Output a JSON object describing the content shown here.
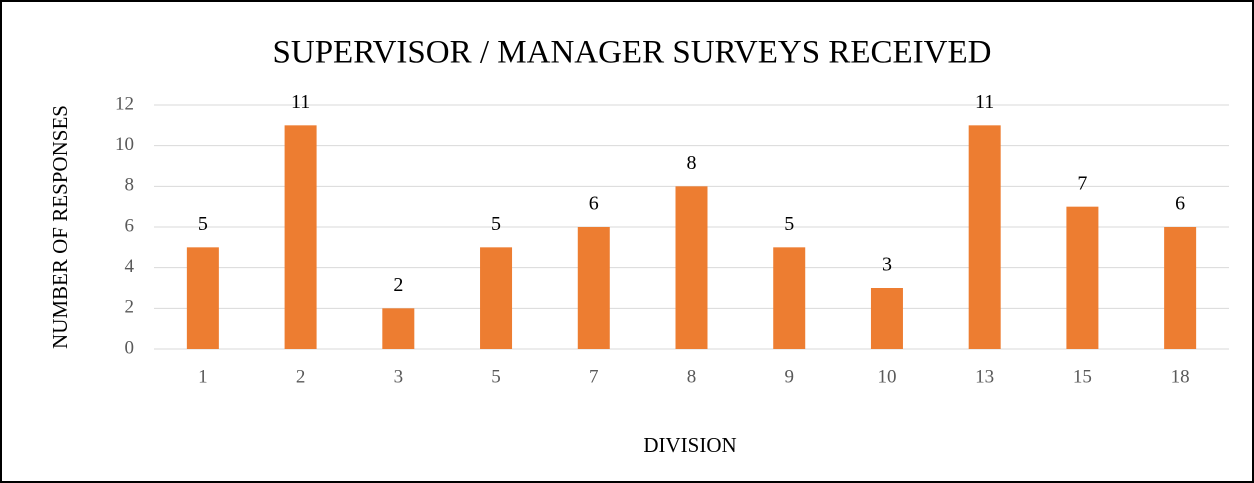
{
  "chart_data": {
    "type": "bar",
    "title": "SUPERVISOR / MANAGER SURVEYS RECEIVED",
    "x_label": "DIVISION",
    "y_label": "NUMBER OF RESPONSES",
    "categories": [
      "1",
      "2",
      "3",
      "5",
      "7",
      "8",
      "9",
      "10",
      "13",
      "15",
      "18"
    ],
    "values": [
      5,
      11,
      2,
      5,
      6,
      8,
      5,
      3,
      11,
      7,
      6
    ],
    "color": "#ed7d31",
    "ylim": [
      0,
      12
    ],
    "yticks": [
      0,
      2,
      4,
      6,
      8,
      10,
      12
    ],
    "grid": true
  }
}
